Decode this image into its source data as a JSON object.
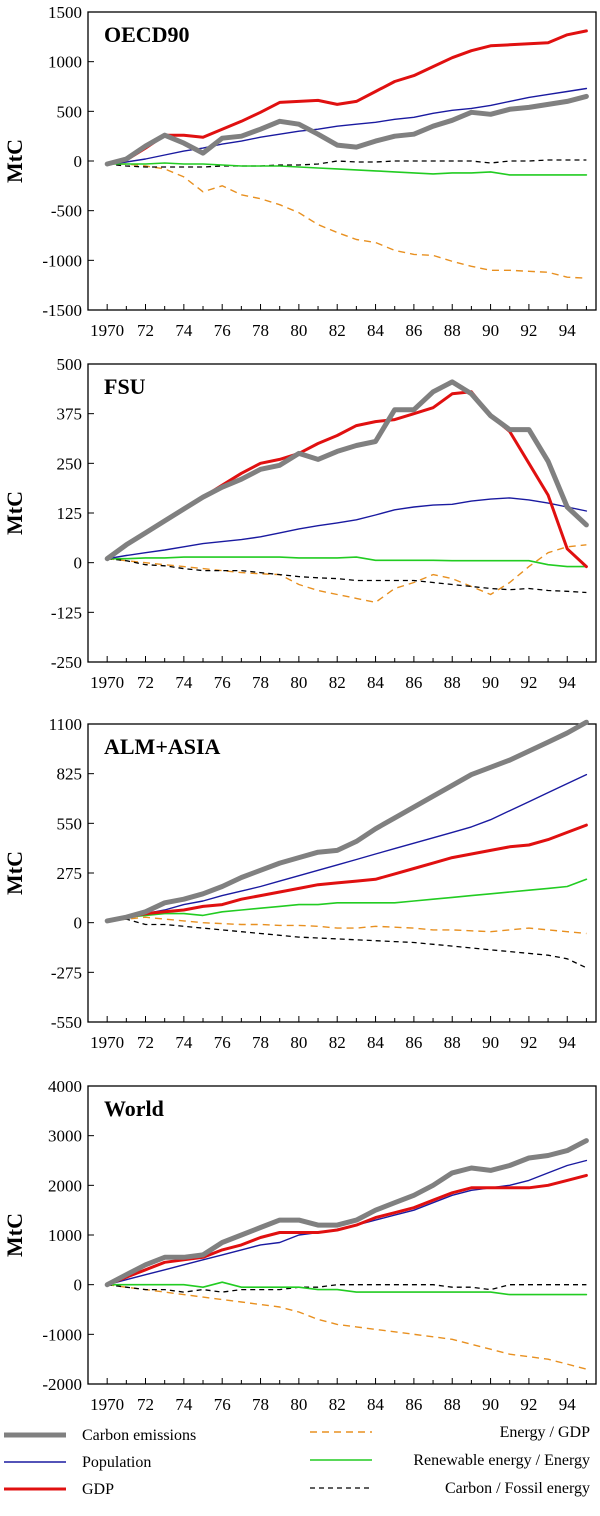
{
  "series_styles": [
    {
      "key": "carbon",
      "color": "#808080",
      "width": 5,
      "dash": ""
    },
    {
      "key": "population",
      "color": "#1a1aa0",
      "width": 1.4,
      "dash": ""
    },
    {
      "key": "gdp",
      "color": "#e01010",
      "width": 3,
      "dash": ""
    },
    {
      "key": "energy_gdp",
      "color": "#e89020",
      "width": 1.4,
      "dash": "7,5"
    },
    {
      "key": "renewable",
      "color": "#22cc22",
      "width": 1.6,
      "dash": ""
    },
    {
      "key": "carbon_fossil",
      "color": "#000000",
      "width": 1.3,
      "dash": "5,4"
    }
  ],
  "legend": {
    "carbon": "Carbon emissions",
    "population": "Population",
    "gdp": "GDP",
    "energy_gdp": "Energy / GDP",
    "renewable": "Renewable energy / Energy",
    "carbon_fossil": "Carbon / Fossil energy"
  },
  "chart_data": [
    {
      "type": "line",
      "title": "OECD90",
      "ylabel": "MtC",
      "ylim": [
        -1500,
        1500
      ],
      "yticks": [
        1500,
        1000,
        500,
        0,
        -500,
        -1000,
        -1500
      ],
      "x": [
        1970,
        1971,
        1972,
        1973,
        1974,
        1975,
        1976,
        1977,
        1978,
        1979,
        1980,
        1981,
        1982,
        1983,
        1984,
        1985,
        1986,
        1987,
        1988,
        1989,
        1990,
        1991,
        1992,
        1993,
        1994,
        1995
      ],
      "xlim": [
        1969,
        1995.5
      ],
      "xticks": [
        "1970",
        "72",
        "74",
        "76",
        "78",
        "80",
        "82",
        "84",
        "86",
        "88",
        "90",
        "92",
        "94"
      ],
      "series": [
        {
          "key": "carbon",
          "values": [
            -30,
            20,
            150,
            260,
            180,
            80,
            230,
            250,
            320,
            400,
            370,
            270,
            160,
            140,
            200,
            250,
            270,
            350,
            410,
            490,
            470,
            520,
            540,
            570,
            600,
            650
          ]
        },
        {
          "key": "population",
          "values": [
            -30,
            -10,
            20,
            60,
            100,
            130,
            170,
            200,
            240,
            270,
            300,
            320,
            350,
            370,
            390,
            420,
            440,
            480,
            510,
            530,
            560,
            600,
            640,
            670,
            700,
            730
          ]
        },
        {
          "key": "gdp",
          "values": [
            -30,
            10,
            130,
            260,
            260,
            240,
            320,
            400,
            490,
            590,
            600,
            610,
            570,
            600,
            700,
            800,
            860,
            950,
            1040,
            1110,
            1160,
            1170,
            1180,
            1190,
            1270,
            1310
          ]
        },
        {
          "key": "energy_gdp",
          "values": [
            -30,
            -30,
            -50,
            -80,
            -160,
            -310,
            -250,
            -340,
            -380,
            -440,
            -520,
            -640,
            -720,
            -790,
            -820,
            -900,
            -940,
            -950,
            -1010,
            -1060,
            -1100,
            -1100,
            -1110,
            -1120,
            -1170,
            -1180
          ]
        },
        {
          "key": "renewable",
          "values": [
            -30,
            -30,
            -30,
            -20,
            -30,
            -30,
            -40,
            -50,
            -50,
            -50,
            -60,
            -70,
            -80,
            -90,
            -100,
            -110,
            -120,
            -130,
            -120,
            -120,
            -110,
            -140,
            -140,
            -140,
            -140,
            -140
          ]
        },
        {
          "key": "carbon_fossil",
          "values": [
            -30,
            -50,
            -60,
            -60,
            -60,
            -60,
            -50,
            -50,
            -50,
            -40,
            -40,
            -30,
            0,
            -10,
            -10,
            0,
            0,
            0,
            0,
            0,
            -20,
            0,
            0,
            10,
            10,
            10
          ]
        }
      ]
    },
    {
      "type": "line",
      "title": "FSU",
      "ylabel": "MtC",
      "ylim": [
        -250,
        500
      ],
      "yticks": [
        500,
        375,
        250,
        125,
        0,
        -125,
        -250
      ],
      "x": [
        1970,
        1971,
        1972,
        1973,
        1974,
        1975,
        1976,
        1977,
        1978,
        1979,
        1980,
        1981,
        1982,
        1983,
        1984,
        1985,
        1986,
        1987,
        1988,
        1989,
        1990,
        1991,
        1992,
        1993,
        1994,
        1995
      ],
      "xlim": [
        1969,
        1995.5
      ],
      "xticks": [
        "1970",
        "72",
        "74",
        "76",
        "78",
        "80",
        "82",
        "84",
        "86",
        "88",
        "90",
        "92",
        "94"
      ],
      "series": [
        {
          "key": "carbon",
          "values": [
            10,
            45,
            75,
            105,
            135,
            165,
            190,
            210,
            235,
            245,
            275,
            260,
            280,
            295,
            305,
            385,
            385,
            430,
            455,
            425,
            370,
            335,
            335,
            255,
            140,
            95
          ]
        },
        {
          "key": "population",
          "values": [
            10,
            18,
            25,
            32,
            40,
            48,
            53,
            58,
            65,
            75,
            85,
            93,
            100,
            108,
            120,
            133,
            140,
            145,
            147,
            155,
            160,
            163,
            158,
            150,
            140,
            130
          ]
        },
        {
          "key": "gdp",
          "values": [
            10,
            45,
            75,
            105,
            135,
            165,
            195,
            225,
            250,
            260,
            275,
            300,
            320,
            345,
            355,
            360,
            375,
            390,
            425,
            430,
            370,
            330,
            250,
            170,
            35,
            -10
          ]
        },
        {
          "key": "energy_gdp",
          "values": [
            10,
            5,
            0,
            -5,
            -10,
            -15,
            -20,
            -25,
            -28,
            -30,
            -55,
            -70,
            -80,
            -90,
            -100,
            -65,
            -50,
            -30,
            -40,
            -60,
            -80,
            -50,
            -10,
            25,
            40,
            45
          ]
        },
        {
          "key": "renewable",
          "values": [
            10,
            10,
            12,
            12,
            14,
            14,
            14,
            14,
            14,
            14,
            12,
            12,
            12,
            14,
            6,
            6,
            6,
            6,
            5,
            5,
            5,
            5,
            5,
            -5,
            -10,
            -10
          ]
        },
        {
          "key": "carbon_fossil",
          "values": [
            10,
            5,
            -5,
            -8,
            -15,
            -20,
            -20,
            -20,
            -25,
            -30,
            -35,
            -38,
            -40,
            -45,
            -45,
            -45,
            -45,
            -50,
            -55,
            -60,
            -65,
            -68,
            -65,
            -70,
            -72,
            -75
          ]
        }
      ]
    },
    {
      "type": "line",
      "title": "ALM+ASIA",
      "ylabel": "MtC",
      "ylim": [
        -550,
        1100
      ],
      "yticks": [
        1100,
        825,
        550,
        275,
        0,
        -275,
        -550
      ],
      "x": [
        1970,
        1971,
        1972,
        1973,
        1974,
        1975,
        1976,
        1977,
        1978,
        1979,
        1980,
        1981,
        1982,
        1983,
        1984,
        1985,
        1986,
        1987,
        1988,
        1989,
        1990,
        1991,
        1992,
        1993,
        1994,
        1995
      ],
      "xlim": [
        1969,
        1995.5
      ],
      "xticks": [
        "1970",
        "72",
        "74",
        "76",
        "78",
        "80",
        "82",
        "84",
        "86",
        "88",
        "90",
        "92",
        "94"
      ],
      "series": [
        {
          "key": "carbon",
          "values": [
            10,
            30,
            60,
            110,
            130,
            160,
            200,
            250,
            290,
            330,
            360,
            390,
            400,
            450,
            520,
            580,
            640,
            700,
            760,
            820,
            860,
            900,
            950,
            1000,
            1050,
            1110
          ]
        },
        {
          "key": "population",
          "values": [
            10,
            30,
            50,
            70,
            100,
            120,
            150,
            175,
            200,
            230,
            260,
            290,
            320,
            350,
            380,
            410,
            440,
            470,
            500,
            530,
            570,
            620,
            670,
            720,
            770,
            820
          ]
        },
        {
          "key": "gdp",
          "values": [
            10,
            30,
            50,
            60,
            70,
            90,
            100,
            130,
            150,
            170,
            190,
            210,
            220,
            230,
            240,
            270,
            300,
            330,
            360,
            380,
            400,
            420,
            430,
            460,
            500,
            540
          ]
        },
        {
          "key": "energy_gdp",
          "values": [
            10,
            20,
            30,
            20,
            10,
            0,
            -5,
            -10,
            -10,
            -15,
            -15,
            -20,
            -30,
            -30,
            -20,
            -25,
            -30,
            -40,
            -40,
            -45,
            -50,
            -40,
            -30,
            -40,
            -50,
            -60
          ]
        },
        {
          "key": "renewable",
          "values": [
            10,
            30,
            40,
            50,
            50,
            40,
            60,
            70,
            80,
            90,
            100,
            100,
            110,
            110,
            110,
            110,
            120,
            130,
            140,
            150,
            160,
            170,
            180,
            190,
            200,
            240
          ]
        },
        {
          "key": "carbon_fossil",
          "values": [
            10,
            20,
            -10,
            -10,
            -20,
            -30,
            -40,
            -50,
            -60,
            -70,
            -80,
            -85,
            -90,
            -95,
            -100,
            -105,
            -110,
            -120,
            -130,
            -140,
            -150,
            -160,
            -170,
            -180,
            -200,
            -250
          ]
        }
      ]
    },
    {
      "type": "line",
      "title": "World",
      "ylabel": "MtC",
      "ylim": [
        -2000,
        4000
      ],
      "yticks": [
        4000,
        3000,
        2000,
        1000,
        0,
        -1000,
        -2000
      ],
      "x": [
        1970,
        1971,
        1972,
        1973,
        1974,
        1975,
        1976,
        1977,
        1978,
        1979,
        1980,
        1981,
        1982,
        1983,
        1984,
        1985,
        1986,
        1987,
        1988,
        1989,
        1990,
        1991,
        1992,
        1993,
        1994,
        1995
      ],
      "xlim": [
        1969,
        1995.5
      ],
      "xticks": [
        "1970",
        "72",
        "74",
        "76",
        "78",
        "80",
        "82",
        "84",
        "86",
        "88",
        "90",
        "92",
        "94"
      ],
      "series": [
        {
          "key": "carbon",
          "values": [
            0,
            200,
            400,
            550,
            550,
            600,
            850,
            1000,
            1150,
            1300,
            1300,
            1200,
            1200,
            1300,
            1500,
            1650,
            1800,
            2000,
            2250,
            2350,
            2300,
            2400,
            2550,
            2600,
            2700,
            2900
          ]
        },
        {
          "key": "population",
          "values": [
            0,
            100,
            200,
            300,
            400,
            500,
            600,
            700,
            800,
            850,
            1000,
            1050,
            1100,
            1200,
            1300,
            1400,
            1500,
            1650,
            1800,
            1900,
            1950,
            2000,
            2100,
            2250,
            2400,
            2500
          ]
        },
        {
          "key": "gdp",
          "values": [
            0,
            150,
            300,
            450,
            500,
            550,
            700,
            800,
            950,
            1050,
            1050,
            1050,
            1100,
            1200,
            1350,
            1450,
            1550,
            1700,
            1850,
            1950,
            1950,
            1950,
            1950,
            2000,
            2100,
            2200
          ]
        },
        {
          "key": "energy_gdp",
          "values": [
            0,
            -50,
            -100,
            -150,
            -200,
            -250,
            -300,
            -350,
            -400,
            -450,
            -550,
            -700,
            -800,
            -850,
            -900,
            -950,
            -1000,
            -1050,
            -1100,
            -1200,
            -1300,
            -1400,
            -1450,
            -1500,
            -1600,
            -1700
          ]
        },
        {
          "key": "renewable",
          "values": [
            0,
            0,
            0,
            0,
            0,
            -50,
            50,
            -50,
            -50,
            -50,
            -50,
            -100,
            -100,
            -150,
            -150,
            -150,
            -150,
            -150,
            -150,
            -150,
            -150,
            -200,
            -200,
            -200,
            -200,
            -200
          ]
        },
        {
          "key": "carbon_fossil",
          "values": [
            0,
            -50,
            -100,
            -100,
            -150,
            -100,
            -150,
            -100,
            -100,
            -100,
            -50,
            -50,
            0,
            0,
            0,
            0,
            0,
            0,
            -50,
            -50,
            -100,
            0,
            0,
            0,
            0,
            0
          ]
        }
      ]
    }
  ]
}
